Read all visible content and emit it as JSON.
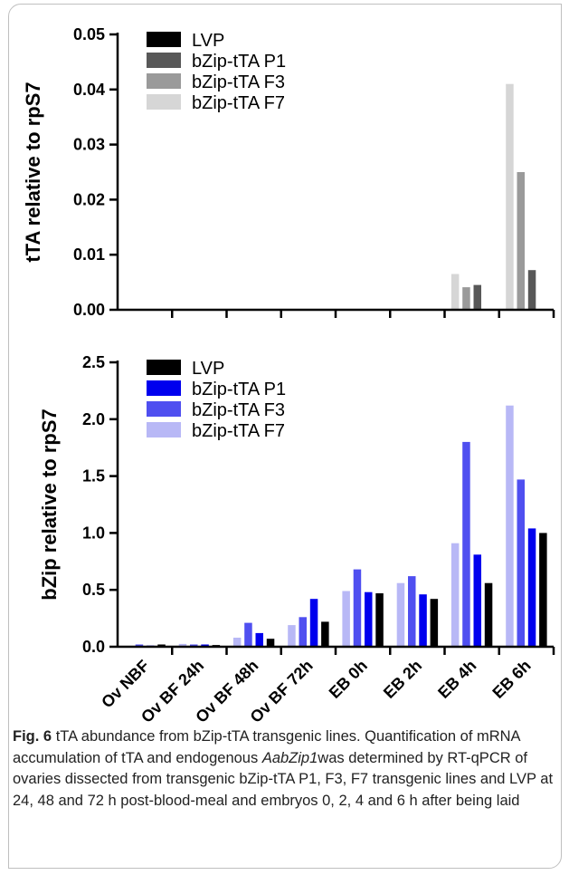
{
  "caption": {
    "label": "Fig. 6",
    "text_before": "tTA abundance from bZip-tTA transgenic lines. Quantification of mRNA accumulation of tTA and endogenous ",
    "gene": "AabZip1",
    "text_after": "was determined by RT-qPCR of ovaries dissected from transgenic bZip-tTA P1, F3, F7 transgenic lines and LVP at 24, 48 and 72 h post-blood-meal and embryos 0, 2, 4 and 6 h after being laid"
  },
  "colors": {
    "top": {
      "LVP": "#000000",
      "bZip-tTA P1": "#585858",
      "bZip-tTA F3": "#9a9a9a",
      "bZip-tTA F7": "#d6d6d6"
    },
    "bottom": {
      "LVP": "#000000",
      "bZip-tTA P1": "#0000ee",
      "bZip-tTA F3": "#4f4ff0",
      "bZip-tTA F7": "#b8b8f6"
    }
  },
  "chart_data": [
    {
      "type": "bar",
      "title": "",
      "xlabel": "",
      "ylabel": "tTA relative to rpS7",
      "ylim": [
        0,
        0.05
      ],
      "yticks": [
        "0.00",
        "0.01",
        "0.02",
        "0.03",
        "0.04",
        "0.05"
      ],
      "categories": [
        "Ov NBF",
        "Ov BF 24h",
        "Ov BF 48h",
        "Ov BF 72h",
        "EB 0h",
        "EB 2h",
        "EB 4h",
        "EB 6h"
      ],
      "legend_position": "top-left",
      "series": [
        {
          "name": "bZip-tTA F7",
          "values": [
            0,
            0,
            0,
            0,
            0,
            0,
            0.0065,
            0.041
          ]
        },
        {
          "name": "bZip-tTA F3",
          "values": [
            0,
            0,
            0,
            0,
            0,
            0,
            0.0041,
            0.025
          ]
        },
        {
          "name": "bZip-tTA P1",
          "values": [
            0,
            0,
            0,
            0,
            0,
            0,
            0.0045,
            0.0072
          ]
        },
        {
          "name": "LVP",
          "values": [
            0,
            0,
            0,
            0,
            0,
            0,
            0,
            0
          ]
        }
      ]
    },
    {
      "type": "bar",
      "title": "",
      "xlabel": "",
      "ylabel": "bZip relative to rpS7",
      "ylim": [
        0,
        2.5
      ],
      "yticks": [
        "0.0",
        "0.5",
        "1.0",
        "1.5",
        "2.0",
        "2.5"
      ],
      "categories": [
        "Ov NBF",
        "Ov BF 24h",
        "Ov BF 48h",
        "Ov BF 72h",
        "EB 0h",
        "EB 2h",
        "EB 4h",
        "EB 6h"
      ],
      "legend_position": "top-left",
      "series": [
        {
          "name": "bZip-tTA F7",
          "values": [
            0.005,
            0.025,
            0.08,
            0.19,
            0.49,
            0.56,
            0.91,
            2.12
          ]
        },
        {
          "name": "bZip-tTA F3",
          "values": [
            0.02,
            0.02,
            0.21,
            0.26,
            0.68,
            0.62,
            1.8,
            1.47
          ]
        },
        {
          "name": "bZip-tTA P1",
          "values": [
            0.01,
            0.02,
            0.12,
            0.42,
            0.48,
            0.46,
            0.81,
            1.04
          ]
        },
        {
          "name": "LVP",
          "values": [
            0.02,
            0.015,
            0.07,
            0.22,
            0.47,
            0.42,
            0.56,
            1.0
          ]
        }
      ]
    }
  ]
}
